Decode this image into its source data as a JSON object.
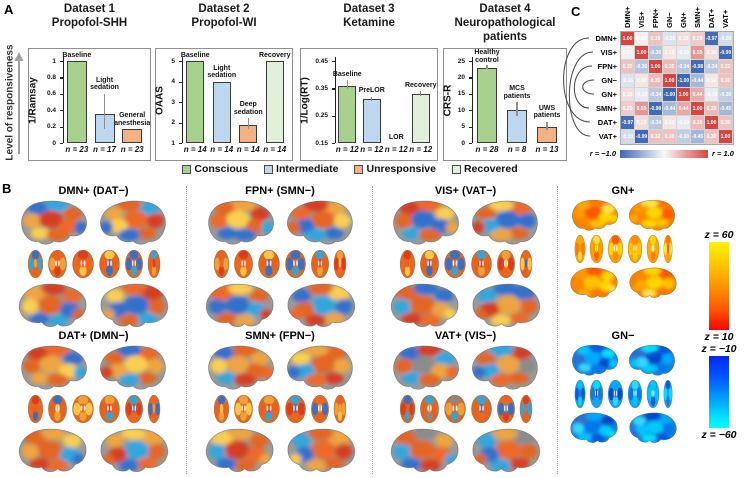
{
  "figure": {
    "panel_a_label": "A",
    "panel_b_label": "B",
    "panel_c_label": "C"
  },
  "panel_a": {
    "y_axis_note": "Level of responsiveness",
    "legend": [
      {
        "label": "Conscious",
        "color": "#a9d18e"
      },
      {
        "label": "Intermediate",
        "color": "#bdd7ee"
      },
      {
        "label": "Unresponsive",
        "color": "#f4b183"
      },
      {
        "label": "Recovered",
        "color": "#e2efda"
      }
    ]
  },
  "chart_data": [
    {
      "type": "bar",
      "title": "Dataset 1 Propofol-SHH",
      "title_lines": [
        "Dataset 1",
        "Propofol-SHH"
      ],
      "ylabel": "1/Ramsay",
      "ylim": [
        0,
        1
      ],
      "yticks": [
        "0",
        "0.2",
        "0.4",
        "0.6",
        "0.8",
        "1"
      ],
      "bars": [
        {
          "label_lines": [
            "Baseline"
          ],
          "value": 1.0,
          "error": 0,
          "n": "n = 23",
          "condition": "conscious",
          "color": "#a9d18e"
        },
        {
          "label_lines": [
            "Light",
            "sedation"
          ],
          "value": 0.35,
          "error": 0.25,
          "n": "n = 17",
          "condition": "intermediate",
          "color": "#bdd7ee"
        },
        {
          "label_lines": [
            "General",
            "anesthesia"
          ],
          "value": 0.17,
          "error": 0,
          "n": "n = 23",
          "condition": "unresponsive",
          "color": "#f4b183"
        }
      ]
    },
    {
      "type": "bar",
      "title": "Dataset 2 Propofol-WI",
      "title_lines": [
        "Dataset 2",
        "Propofol-WI"
      ],
      "ylabel": "OAAS",
      "ylim": [
        1,
        5
      ],
      "yticks": [
        "1",
        "2",
        "3",
        "4",
        "5"
      ],
      "bars": [
        {
          "label_lines": [
            "Baseline"
          ],
          "value": 5,
          "error": 0,
          "n": "n = 14",
          "condition": "conscious",
          "color": "#a9d18e"
        },
        {
          "label_lines": [
            "Light",
            "sedation"
          ],
          "value": 4,
          "error": 0,
          "n": "n = 14",
          "condition": "intermediate",
          "color": "#bdd7ee"
        },
        {
          "label_lines": [
            "Deep",
            "sedation"
          ],
          "value": 1.9,
          "error": 0.3,
          "n": "n = 14",
          "condition": "unresponsive",
          "color": "#f4b183"
        },
        {
          "label_lines": [
            "Recovery"
          ],
          "value": 5,
          "error": 0,
          "n": "n = 14",
          "condition": "recovered",
          "color": "#e2efda"
        }
      ]
    },
    {
      "type": "bar",
      "title": "Dataset 3 Ketamine",
      "title_lines": [
        "Dataset 3",
        "Ketamine"
      ],
      "ylabel": "1/Log(RT)",
      "ylim": [
        0.15,
        0.45
      ],
      "yticks": [
        "0.15",
        "0.25",
        "0.35",
        "0.45"
      ],
      "bars": [
        {
          "label_lines": [
            "Baseline"
          ],
          "value": 0.36,
          "error": 0.02,
          "n": "n = 12",
          "condition": "conscious",
          "color": "#a9d18e"
        },
        {
          "label_lines": [
            "PreLOR"
          ],
          "value": 0.31,
          "error": 0.01,
          "n": "n = 12",
          "condition": "intermediate",
          "color": "#bdd7ee"
        },
        {
          "label_lines": [
            "LOR"
          ],
          "value": 0.15,
          "error": 0,
          "n": "n = 12",
          "condition": "unresponsive",
          "color": "#f4b183"
        },
        {
          "label_lines": [
            "Recovery"
          ],
          "value": 0.33,
          "error": 0.01,
          "n": "n = 12",
          "condition": "recovered",
          "color": "#e2efda"
        }
      ]
    },
    {
      "type": "bar",
      "title": "Dataset 4 Neuropathological patients",
      "title_lines": [
        "Dataset 4",
        "Neuropathological",
        "patients"
      ],
      "ylabel": "CRS-R",
      "ylim": [
        0,
        25
      ],
      "yticks": [
        "0",
        "5",
        "10",
        "15",
        "20",
        "25"
      ],
      "bars": [
        {
          "label_lines": [
            "Healthy",
            "control"
          ],
          "value": 23,
          "error": 0.8,
          "n": "n = 28",
          "condition": "conscious",
          "color": "#a9d18e"
        },
        {
          "label_lines": [
            "MCS",
            "patients"
          ],
          "value": 10,
          "error": 2.5,
          "n": "n = 8",
          "condition": "intermediate",
          "color": "#bdd7ee"
        },
        {
          "label_lines": [
            "UWS",
            "patients"
          ],
          "value": 5,
          "error": 1.5,
          "n": "n = 13",
          "condition": "unresponsive",
          "color": "#f4b183"
        }
      ]
    },
    {
      "type": "heatmap",
      "labels": [
        "DMN+",
        "VIS+",
        "FPN+",
        "GN−",
        "GN+",
        "SMN+",
        "DAT+",
        "VAT+"
      ],
      "matrix": [
        [
          1.0,
          0.05,
          0.3,
          -0.15,
          0.15,
          0.25,
          -0.97,
          -0.2
        ],
        [
          0.05,
          1.0,
          -0.36,
          0.1,
          -0.1,
          0.55,
          0.15,
          -0.99
        ],
        [
          0.3,
          -0.36,
          1.0,
          0.35,
          -0.34,
          -0.98,
          -0.34,
          0.32
        ],
        [
          -0.15,
          0.1,
          0.35,
          1.0,
          -1.0,
          -0.44,
          0.1,
          0.3
        ],
        [
          0.15,
          -0.1,
          -0.34,
          -1.0,
          1.0,
          0.44,
          -0.1,
          -0.3
        ],
        [
          0.25,
          0.55,
          -0.98,
          -0.44,
          0.44,
          1.0,
          0.35,
          -0.45
        ],
        [
          -0.97,
          0.15,
          -0.34,
          0.1,
          -0.1,
          0.35,
          1.0,
          0.3
        ],
        [
          -0.2,
          -0.99,
          0.32,
          0.3,
          -0.3,
          -0.45,
          0.3,
          1.0
        ]
      ],
      "paired_rows": [
        [
          0,
          6
        ],
        [
          1,
          7
        ],
        [
          2,
          5
        ],
        [
          3,
          4
        ]
      ],
      "colorbar": {
        "left_label": "r = −1.0",
        "right_label": "r = 1.0",
        "min_color": "#3f68b3",
        "max_color": "#d6453f"
      }
    }
  ],
  "panel_b": {
    "groups": [
      {
        "title": "DMN+ (DAT−)",
        "palette": "mixed_warm"
      },
      {
        "title": "FPN+ (SMN−)",
        "palette": "mixed_warm"
      },
      {
        "title": "VIS+ (VAT−)",
        "palette": "mixed_warm"
      },
      {
        "title": "GN+",
        "palette": "warm"
      },
      {
        "title": "DAT+ (DMN−)",
        "palette": "mixed_warm2"
      },
      {
        "title": "SMN+ (FPN−)",
        "palette": "mixed_warm2"
      },
      {
        "title": "VAT+ (VIS−)",
        "palette": "mixed_cool"
      },
      {
        "title": "GN−",
        "palette": "cool"
      }
    ],
    "colorbar_hot": {
      "top_label": "z = 60",
      "bottom_label": "z = 10",
      "top_color": "#fff200",
      "bottom_color": "#f50000"
    },
    "colorbar_cool": {
      "top_label": "z = −10",
      "bottom_label": "z = −60",
      "top_color": "#0026ff",
      "bottom_color": "#00ffff"
    }
  }
}
